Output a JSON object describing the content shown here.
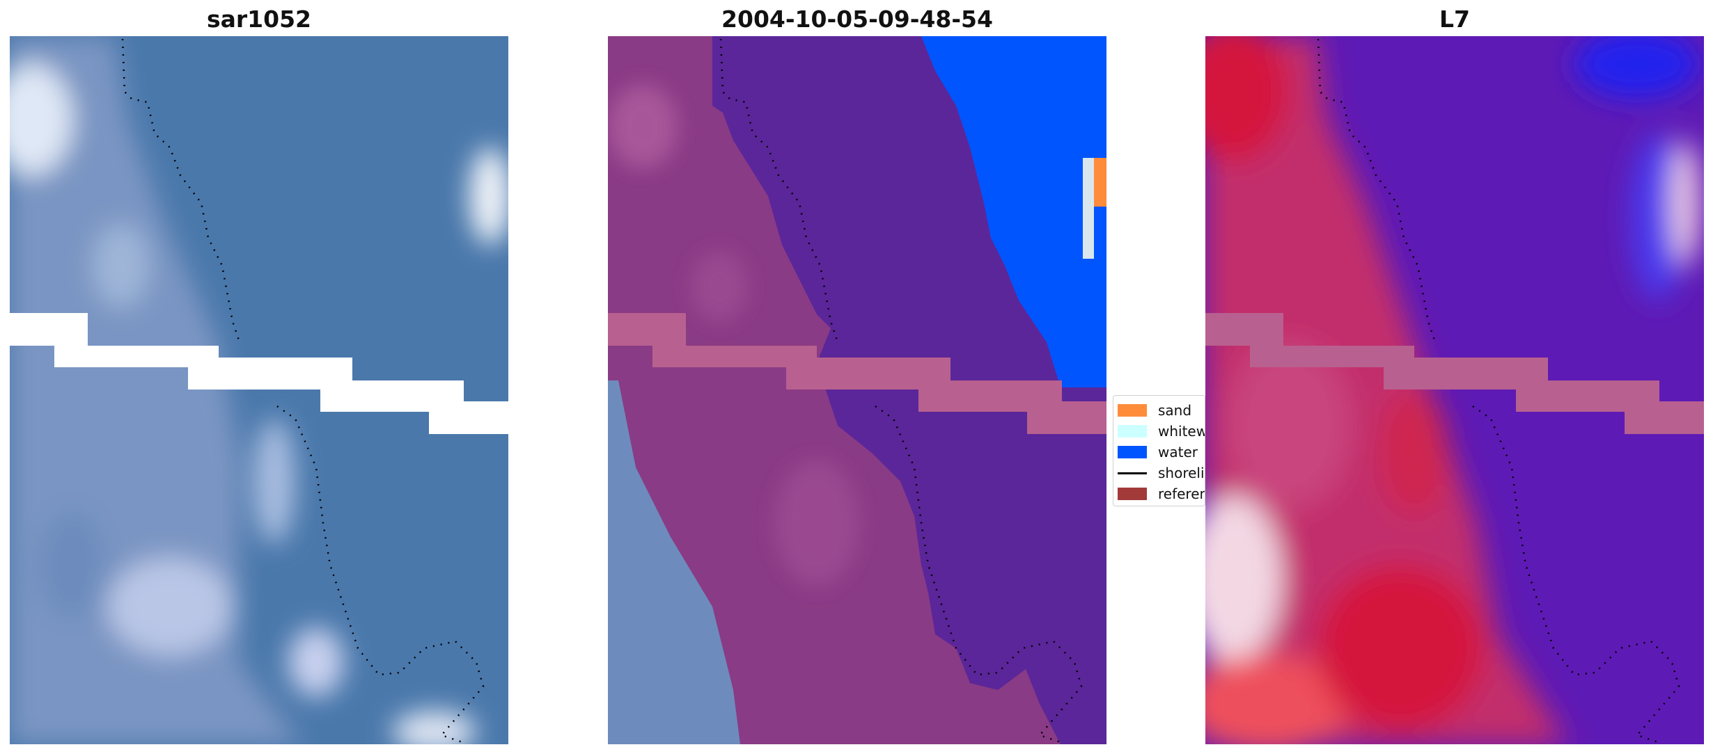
{
  "panels": [
    {
      "title": "sar1052"
    },
    {
      "title": "2004-10-05-09-48-54"
    },
    {
      "title": "L7"
    }
  ],
  "legend": {
    "items": [
      {
        "label": "sand",
        "color": "#ff8c3a",
        "kind": "patch"
      },
      {
        "label": "whitewater",
        "color": "#ccffff",
        "kind": "patch"
      },
      {
        "label": "water",
        "color": "#0055ff",
        "kind": "patch"
      },
      {
        "label": "shoreline",
        "color": "#000000",
        "kind": "line"
      },
      {
        "label": "reference shoreline",
        "color": "#a33a3a",
        "kind": "patch"
      }
    ]
  },
  "colors": {
    "sar_water": "#4a78ab",
    "sar_land": "#7e98c5",
    "class_water": "#5b2699",
    "class_sand": "#8a3b85",
    "class_sea": "#0055ff",
    "nodata_band": "#b8608f",
    "l7_red": "#d4163e",
    "l7_purple": "#5e1ab5"
  }
}
